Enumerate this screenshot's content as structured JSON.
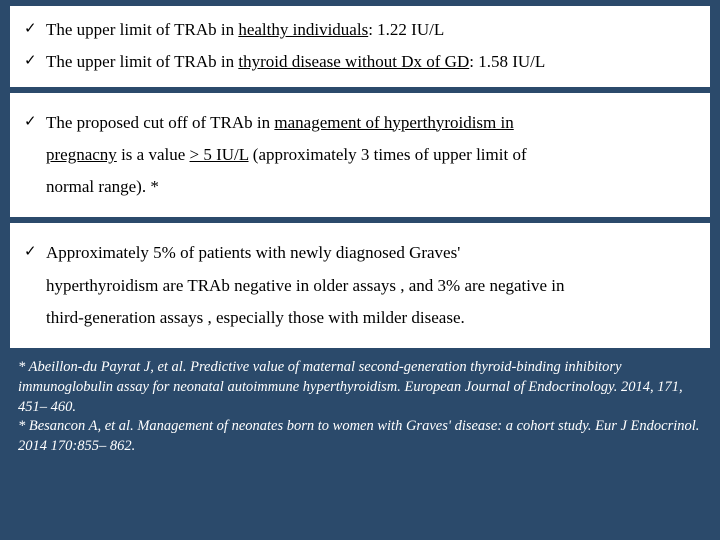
{
  "card1": {
    "b1_pre": "The upper limit of TRAb in ",
    "b1_u": "healthy individuals",
    "b1_post": ": 1.22 IU/L",
    "b2_pre": "The upper limit of TRAb in ",
    "b2_u": "thyroid disease without Dx of  GD",
    "b2_post": ": 1.58 IU/L"
  },
  "card2": {
    "l1_pre": "The proposed cut off  of TRAb in ",
    "l1_u": "management of hyperthyroidism in",
    "l2_u": "pregnacny",
    "l2_mid": " is a value ",
    "l2_u2": "> 5 IU/L",
    "l2_post": " (approximately 3 times of upper limit of",
    "l3": "normal range). *"
  },
  "card3": {
    "l1": "Approximately 5% of patients with newly diagnosed Graves'",
    "l2": "hyperthyroidism are TRAb negative in older assays , and 3% are negative in",
    "l3": "third-generation assays , especially those with milder disease."
  },
  "refs": {
    "r1": "* Abeillon-du Payrat J, et al. Predictive value of maternal second-generation thyroid-binding inhibitory immunoglobulin assay for neonatal autoimmune hyperthyroidism. European Journal of Endocrinology. 2014,  171, 451– 460.",
    "r2": "* Besancon A, et al. Management of neonates born to women with Graves' disease: a cohort study. Eur J Endocrinol. 2014 170:855– 862."
  }
}
